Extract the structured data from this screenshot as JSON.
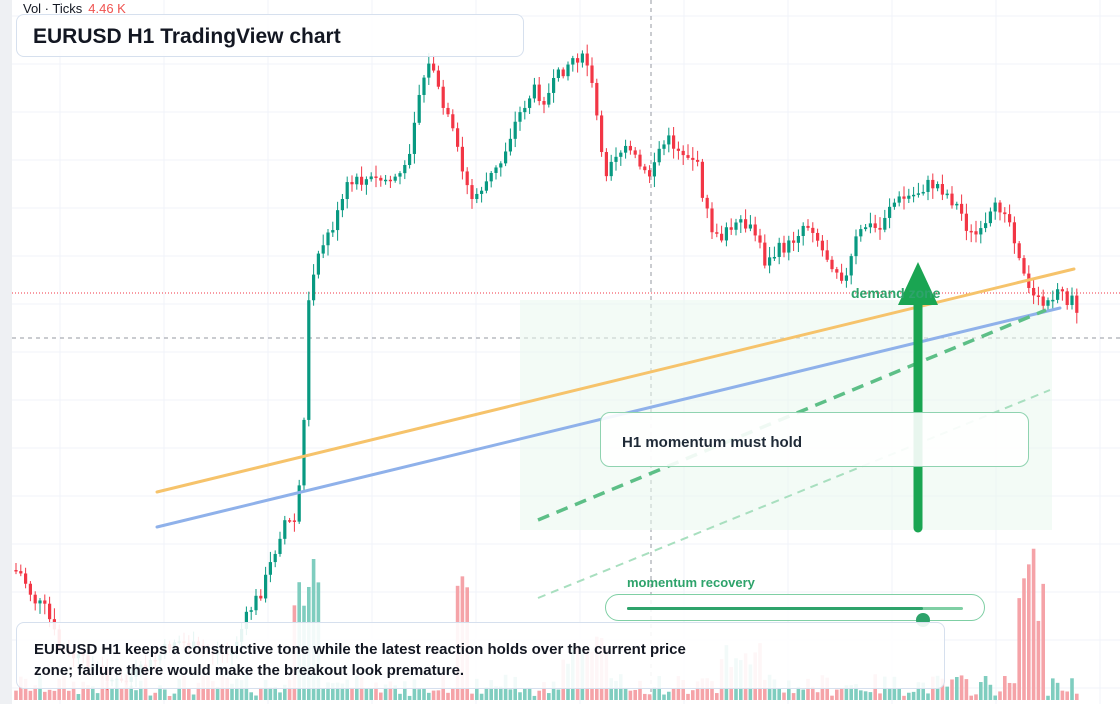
{
  "header": {
    "title": "EURUSD H1 TradingView chart",
    "volume_label": "Vol · Ticks",
    "volume_value": "4.46 K"
  },
  "annotations": {
    "zone_label": "demand zone",
    "callout_text": "H1 momentum must hold",
    "slider_label": "momentum recovery",
    "slider_level": 0.88,
    "summary": "EURUSD H1 keeps a constructive tone while the latest reaction holds over the current price zone; failure there would make the breakout look premature."
  },
  "colors": {
    "up": "#089981",
    "down": "#f23645",
    "up_volume": "#7fcdbf",
    "down_volume": "#f5a3a8",
    "orange_trendline": "#f6c36b",
    "blue_trendline": "#8fb1ea",
    "green_dashed": "#5dbf87",
    "arrow": "#1aa552",
    "accent": "#2ea36b"
  },
  "icons": {
    "arrow": "arrow-up-icon"
  }
}
